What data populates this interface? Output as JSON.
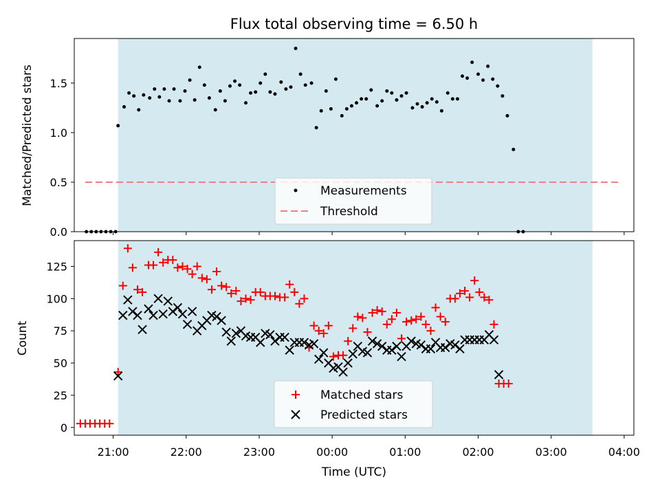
{
  "chart_data": [
    {
      "type": "scatter",
      "title": "Flux total observing time = 6.50 h",
      "ylabel": "Matched/Predicted stars",
      "xlabel": "",
      "xlim": [
        "20:28",
        "04:08"
      ],
      "ylim": [
        0,
        1.95
      ],
      "yticks": [
        0.0,
        0.5,
        1.0,
        1.5
      ],
      "ytick_labels": [
        "0.0",
        "0.5",
        "1.0",
        "1.5"
      ],
      "shaded_interval": [
        "21:04",
        "03:34"
      ],
      "shade_color": "#d4eaf0",
      "legend": {
        "position": "lower-center",
        "entries": [
          "Measurements",
          "Threshold"
        ]
      },
      "threshold": {
        "value": 0.5,
        "x_range": [
          "20:37",
          "03:56"
        ],
        "color": "#f08080"
      },
      "series": [
        {
          "name": "Measurements",
          "color": "#000000",
          "marker": "dot",
          "points": [
            [
              "20:38",
              0
            ],
            [
              "20:42",
              0
            ],
            [
              "20:46",
              0
            ],
            [
              "20:50",
              0
            ],
            [
              "20:54",
              0
            ],
            [
              "20:58",
              0
            ],
            [
              "21:02",
              0
            ],
            [
              "21:04",
              1.07
            ],
            [
              "21:09",
              1.26
            ],
            [
              "21:13",
              1.4
            ],
            [
              "21:17",
              1.37
            ],
            [
              "21:21",
              1.23
            ],
            [
              "21:25",
              1.38
            ],
            [
              "21:30",
              1.35
            ],
            [
              "21:34",
              1.44
            ],
            [
              "21:38",
              1.36
            ],
            [
              "21:42",
              1.44
            ],
            [
              "21:46",
              1.32
            ],
            [
              "21:50",
              1.44
            ],
            [
              "21:55",
              1.32
            ],
            [
              "21:59",
              1.42
            ],
            [
              "22:03",
              1.53
            ],
            [
              "22:07",
              1.33
            ],
            [
              "22:11",
              1.66
            ],
            [
              "22:15",
              1.48
            ],
            [
              "22:19",
              1.35
            ],
            [
              "22:24",
              1.23
            ],
            [
              "22:28",
              1.42
            ],
            [
              "22:32",
              1.32
            ],
            [
              "22:36",
              1.47
            ],
            [
              "22:40",
              1.52
            ],
            [
              "22:44",
              1.48
            ],
            [
              "22:49",
              1.3
            ],
            [
              "22:53",
              1.4
            ],
            [
              "22:57",
              1.41
            ],
            [
              "23:01",
              1.5
            ],
            [
              "23:05",
              1.59
            ],
            [
              "23:09",
              1.41
            ],
            [
              "23:13",
              1.39
            ],
            [
              "23:18",
              1.51
            ],
            [
              "23:22",
              1.44
            ],
            [
              "23:26",
              1.46
            ],
            [
              "23:30",
              1.85
            ],
            [
              "23:34",
              1.59
            ],
            [
              "23:38",
              1.48
            ],
            [
              "23:43",
              1.5
            ],
            [
              "23:47",
              1.05
            ],
            [
              "23:51",
              1.22
            ],
            [
              "23:55",
              1.42
            ],
            [
              "23:59",
              1.24
            ],
            [
              "00:03",
              1.54
            ],
            [
              "00:08",
              1.17
            ],
            [
              "00:12",
              1.24
            ],
            [
              "00:16",
              1.27
            ],
            [
              "00:20",
              1.3
            ],
            [
              "00:24",
              1.34
            ],
            [
              "00:28",
              1.34
            ],
            [
              "00:32",
              1.43
            ],
            [
              "00:37",
              1.27
            ],
            [
              "00:41",
              1.32
            ],
            [
              "00:45",
              1.42
            ],
            [
              "00:49",
              1.4
            ],
            [
              "00:53",
              1.33
            ],
            [
              "00:57",
              1.37
            ],
            [
              "01:01",
              1.4
            ],
            [
              "01:06",
              1.25
            ],
            [
              "01:10",
              1.29
            ],
            [
              "01:14",
              1.26
            ],
            [
              "01:18",
              1.3
            ],
            [
              "01:22",
              1.34
            ],
            [
              "01:26",
              1.31
            ],
            [
              "01:30",
              1.22
            ],
            [
              "01:35",
              1.4
            ],
            [
              "01:39",
              1.34
            ],
            [
              "01:43",
              1.34
            ],
            [
              "01:47",
              1.57
            ],
            [
              "01:51",
              1.55
            ],
            [
              "01:55",
              1.71
            ],
            [
              "02:00",
              1.59
            ],
            [
              "02:04",
              1.53
            ],
            [
              "02:08",
              1.67
            ],
            [
              "02:12",
              1.54
            ],
            [
              "02:16",
              1.47
            ],
            [
              "02:20",
              1.37
            ],
            [
              "02:24",
              1.17
            ],
            [
              "02:29",
              0.83
            ],
            [
              "02:33",
              0
            ],
            [
              "02:37",
              0
            ]
          ]
        }
      ]
    },
    {
      "type": "scatter",
      "title": "",
      "ylabel": "Count",
      "xlabel": "Time (UTC)",
      "xlim": [
        "20:28",
        "04:08"
      ],
      "ylim": [
        -6,
        145
      ],
      "xticks": [
        "21:00",
        "22:00",
        "23:00",
        "00:00",
        "01:00",
        "02:00",
        "03:00",
        "04:00"
      ],
      "yticks": [
        0,
        25,
        50,
        75,
        100,
        125
      ],
      "ytick_labels": [
        "0",
        "25",
        "50",
        "75",
        "100",
        "125"
      ],
      "shaded_interval": [
        "21:04",
        "03:34"
      ],
      "legend": {
        "position": "lower-center",
        "entries": [
          "Matched stars",
          "Predicted stars"
        ]
      },
      "series": [
        {
          "name": "Matched stars",
          "color": "#ff0000",
          "marker": "plus",
          "points": [
            [
              "20:33",
              3
            ],
            [
              "20:37",
              3
            ],
            [
              "20:41",
              3
            ],
            [
              "20:45",
              3
            ],
            [
              "20:49",
              3
            ],
            [
              "20:53",
              3
            ],
            [
              "20:57",
              3
            ],
            [
              "21:04",
              43
            ],
            [
              "21:08",
              110
            ],
            [
              "21:12",
              139
            ],
            [
              "21:16",
              124
            ],
            [
              "21:20",
              107
            ],
            [
              "21:24",
              105
            ],
            [
              "21:29",
              126
            ],
            [
              "21:33",
              126
            ],
            [
              "21:37",
              136
            ],
            [
              "21:41",
              128
            ],
            [
              "21:45",
              130
            ],
            [
              "21:49",
              130
            ],
            [
              "21:53",
              124
            ],
            [
              "21:57",
              125
            ],
            [
              "22:01",
              123
            ],
            [
              "22:05",
              119
            ],
            [
              "22:09",
              125
            ],
            [
              "22:13",
              116
            ],
            [
              "22:17",
              115
            ],
            [
              "22:21",
              107
            ],
            [
              "22:25",
              121
            ],
            [
              "22:29",
              110
            ],
            [
              "22:33",
              109
            ],
            [
              "22:37",
              104
            ],
            [
              "22:41",
              106
            ],
            [
              "22:45",
              98
            ],
            [
              "22:49",
              100
            ],
            [
              "22:53",
              99
            ],
            [
              "22:57",
              105
            ],
            [
              "23:01",
              105
            ],
            [
              "23:05",
              102
            ],
            [
              "23:09",
              102
            ],
            [
              "23:13",
              102
            ],
            [
              "23:17",
              101
            ],
            [
              "23:21",
              101
            ],
            [
              "23:25",
              111
            ],
            [
              "23:29",
              105
            ],
            [
              "23:33",
              96
            ],
            [
              "23:37",
              100
            ],
            [
              "23:41",
              62
            ],
            [
              "23:45",
              79
            ],
            [
              "23:49",
              75
            ],
            [
              "23:53",
              73
            ],
            [
              "23:57",
              79
            ],
            [
              "00:01",
              55
            ],
            [
              "00:05",
              56
            ],
            [
              "00:09",
              56
            ],
            [
              "00:13",
              67
            ],
            [
              "00:17",
              77
            ],
            [
              "00:21",
              86
            ],
            [
              "00:25",
              85
            ],
            [
              "00:29",
              74
            ],
            [
              "00:33",
              89
            ],
            [
              "00:37",
              91
            ],
            [
              "00:41",
              90
            ],
            [
              "00:45",
              80
            ],
            [
              "00:49",
              84
            ],
            [
              "00:53",
              89
            ],
            [
              "00:57",
              69
            ],
            [
              "01:01",
              82
            ],
            [
              "01:05",
              83
            ],
            [
              "01:09",
              84
            ],
            [
              "01:13",
              86
            ],
            [
              "01:17",
              80
            ],
            [
              "01:21",
              75
            ],
            [
              "01:25",
              93
            ],
            [
              "01:29",
              86
            ],
            [
              "01:33",
              82
            ],
            [
              "01:37",
              100
            ],
            [
              "01:41",
              100
            ],
            [
              "01:45",
              104
            ],
            [
              "01:49",
              106
            ],
            [
              "01:53",
              101
            ],
            [
              "01:57",
              114
            ],
            [
              "02:01",
              105
            ],
            [
              "02:05",
              101
            ],
            [
              "02:09",
              99
            ],
            [
              "02:13",
              80
            ],
            [
              "02:17",
              34
            ],
            [
              "02:21",
              34
            ],
            [
              "02:25",
              34
            ]
          ]
        },
        {
          "name": "Predicted stars",
          "color": "#000000",
          "marker": "x",
          "points": [
            [
              "21:04",
              40
            ],
            [
              "21:08",
              87
            ],
            [
              "21:12",
              99
            ],
            [
              "21:16",
              90
            ],
            [
              "21:20",
              87
            ],
            [
              "21:24",
              76
            ],
            [
              "21:29",
              92
            ],
            [
              "21:33",
              87
            ],
            [
              "21:37",
              100
            ],
            [
              "21:41",
              88
            ],
            [
              "21:45",
              98
            ],
            [
              "21:49",
              90
            ],
            [
              "21:53",
              93
            ],
            [
              "21:57",
              88
            ],
            [
              "22:01",
              80
            ],
            [
              "22:05",
              90
            ],
            [
              "22:09",
              75
            ],
            [
              "22:13",
              79
            ],
            [
              "22:17",
              83
            ],
            [
              "22:21",
              87
            ],
            [
              "22:25",
              86
            ],
            [
              "22:29",
              83
            ],
            [
              "22:33",
              74
            ],
            [
              "22:37",
              67
            ],
            [
              "22:41",
              73
            ],
            [
              "22:45",
              75
            ],
            [
              "22:49",
              71
            ],
            [
              "22:53",
              70
            ],
            [
              "22:57",
              70
            ],
            [
              "23:01",
              66
            ],
            [
              "23:05",
              73
            ],
            [
              "23:09",
              72
            ],
            [
              "23:13",
              67
            ],
            [
              "23:17",
              70
            ],
            [
              "23:21",
              70
            ],
            [
              "23:25",
              60
            ],
            [
              "23:29",
              66
            ],
            [
              "23:33",
              66
            ],
            [
              "23:37",
              66
            ],
            [
              "23:41",
              64
            ],
            [
              "23:45",
              65
            ],
            [
              "23:49",
              53
            ],
            [
              "23:53",
              58
            ],
            [
              "23:57",
              50
            ],
            [
              "00:01",
              46
            ],
            [
              "00:05",
              47
            ],
            [
              "00:09",
              43
            ],
            [
              "00:13",
              50
            ],
            [
              "00:17",
              57
            ],
            [
              "00:21",
              63
            ],
            [
              "00:25",
              59
            ],
            [
              "00:29",
              58
            ],
            [
              "00:33",
              67
            ],
            [
              "00:37",
              65
            ],
            [
              "00:41",
              63
            ],
            [
              "00:45",
              60
            ],
            [
              "00:49",
              60
            ],
            [
              "00:53",
              63
            ],
            [
              "00:57",
              55
            ],
            [
              "01:01",
              63
            ],
            [
              "01:05",
              67
            ],
            [
              "01:09",
              65
            ],
            [
              "01:13",
              64
            ],
            [
              "01:17",
              61
            ],
            [
              "01:21",
              61
            ],
            [
              "01:25",
              66
            ],
            [
              "01:29",
              62
            ],
            [
              "01:33",
              62
            ],
            [
              "01:37",
              65
            ],
            [
              "01:41",
              64
            ],
            [
              "01:45",
              61
            ],
            [
              "01:49",
              68
            ],
            [
              "01:53",
              68
            ],
            [
              "01:57",
              68
            ],
            [
              "02:01",
              68
            ],
            [
              "02:05",
              68
            ],
            [
              "02:09",
              72
            ],
            [
              "02:13",
              68
            ],
            [
              "02:17",
              41
            ]
          ]
        }
      ]
    }
  ]
}
